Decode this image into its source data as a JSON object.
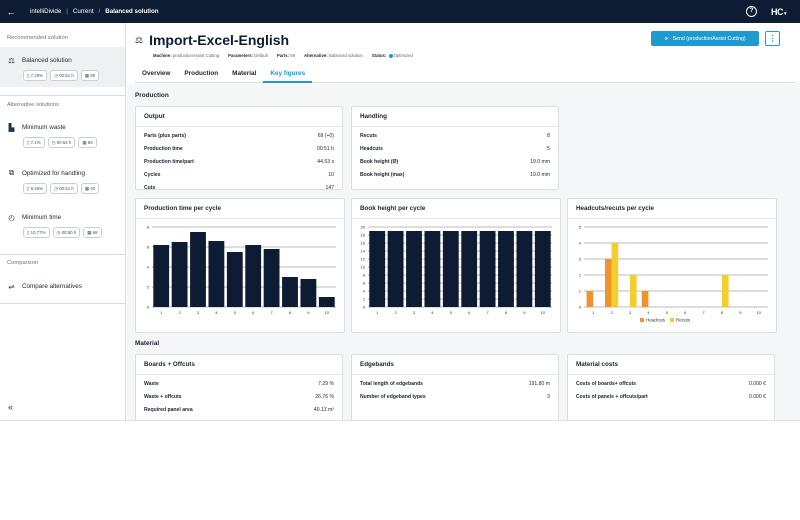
{
  "topbar": {
    "back_icon": "arrow-left-icon",
    "crumbs": [
      "intelliDivide",
      "Current",
      "Balanced solution"
    ],
    "help_icon": "question-circle-icon",
    "brand": "HC"
  },
  "sidebar": {
    "recommended_label": "Recommended solution",
    "alternatives_label": "Alternative solutions",
    "comparison_label": "Comparison",
    "items": [
      {
        "label": "Balanced solution",
        "icon": "scale-icon",
        "chips": [
          "7.29%",
          "00:51 h",
          "69"
        ]
      },
      {
        "label": "Minimum waste",
        "icon": "waste-icon",
        "chips": [
          "7.1%",
          "00:54 h",
          "69"
        ]
      },
      {
        "label": "Optimized for handling",
        "icon": "handling-icon",
        "chips": [
          "9.46%",
          "00:51 h",
          "40"
        ]
      },
      {
        "label": "Minimum time",
        "icon": "clock-icon",
        "chips": [
          "10.77%",
          "00:50 h",
          "68"
        ]
      }
    ],
    "compare_label": "Compare alternatives",
    "compare_icon": "compare-icon",
    "collapse_icon": "double-chevron-left-icon"
  },
  "header": {
    "title": "Import-Excel-English",
    "meta": [
      {
        "k": "Machine:",
        "v": "productionAssist Cutting"
      },
      {
        "k": "Parameters:",
        "v": "Default"
      },
      {
        "k": "Parts:",
        "v": "69"
      },
      {
        "k": "Alternative:",
        "v": "Balanced solution"
      },
      {
        "k": "Status:",
        "v": "Optimized"
      }
    ],
    "send_label": "Send (productionAssist Cutting)",
    "more_icon": "kebab-menu-icon"
  },
  "tabs": [
    "Overview",
    "Production",
    "Material",
    "Key figures"
  ],
  "production": {
    "section_title": "Production",
    "output": {
      "title": "Output",
      "rows": [
        {
          "k": "Parts (plus parts)",
          "v": "69 (+0)"
        },
        {
          "k": "Production time",
          "v": "00:51 h"
        },
        {
          "k": "Production time/part",
          "v": "44.53 s"
        },
        {
          "k": "Cycles",
          "v": "10"
        },
        {
          "k": "Cuts",
          "v": "147"
        }
      ]
    },
    "handling": {
      "title": "Handling",
      "rows": [
        {
          "k": "Recuts",
          "v": "8"
        },
        {
          "k": "Headcuts",
          "v": "5"
        },
        {
          "k": "Book height (Ø)",
          "v": "19.0 mm"
        },
        {
          "k": "Book height (max)",
          "v": "19.0 mm"
        }
      ]
    }
  },
  "charts_titles": {
    "time": "Production time per cycle",
    "book": "Book height per cycle",
    "cuts": "Headcuts/recuts per cycle"
  },
  "chart_data": [
    {
      "type": "bar",
      "title": "Production time per cycle",
      "categories": [
        "1",
        "2",
        "3",
        "4",
        "5",
        "6",
        "7",
        "8",
        "9",
        "10"
      ],
      "values": [
        6.2,
        6.5,
        7.5,
        6.6,
        5.5,
        6.2,
        5.8,
        3.0,
        2.8,
        1.0
      ],
      "ylim": [
        0,
        8
      ],
      "yticks": [
        0,
        2,
        4,
        6,
        8
      ],
      "color": "#0d1b33"
    },
    {
      "type": "bar",
      "title": "Book height per cycle",
      "categories": [
        "1",
        "2",
        "3",
        "4",
        "5",
        "6",
        "7",
        "8",
        "9",
        "10"
      ],
      "values": [
        19,
        19,
        19,
        19,
        19,
        19,
        19,
        19,
        19,
        19
      ],
      "ylim": [
        0,
        20
      ],
      "yticks": [
        0,
        2,
        4,
        6,
        8,
        10,
        12,
        14,
        16,
        18,
        20
      ],
      "color": "#0d1b33"
    },
    {
      "type": "bar",
      "title": "Headcuts/recuts per cycle",
      "categories": [
        "1",
        "2",
        "3",
        "4",
        "5",
        "6",
        "7",
        "8",
        "9",
        "10"
      ],
      "ylim": [
        0,
        5
      ],
      "yticks": [
        0,
        1,
        2,
        3,
        4,
        5
      ],
      "series": [
        {
          "name": "Headcuts",
          "values": [
            1,
            3,
            0,
            1,
            0,
            0,
            0,
            0,
            0,
            0
          ],
          "color": "#f0932b"
        },
        {
          "name": "Recuts",
          "values": [
            0,
            4,
            2,
            0,
            0,
            0,
            0,
            2,
            0,
            0
          ],
          "color": "#f5cd2e"
        }
      ],
      "legend": "bottom"
    }
  ],
  "material": {
    "section_title": "Material",
    "boards": {
      "title": "Boards + Offcuts",
      "rows": [
        {
          "k": "Waste",
          "v": "7.29 %"
        },
        {
          "k": "Waste + offcuts",
          "v": "26.76 %"
        },
        {
          "k": "Required panel area",
          "v": "40.13 m²"
        }
      ]
    },
    "edgebands": {
      "title": "Edgebands",
      "rows": [
        {
          "k": "Total length of edgebands",
          "v": "191.80 m"
        },
        {
          "k": "Number of edgeband types",
          "v": "3"
        }
      ]
    },
    "costs": {
      "title": "Material costs",
      "rows": [
        {
          "k": "Costs of boards+ offcuts",
          "v": "0.000 €"
        },
        {
          "k": "Costs of panels + offcuts/part",
          "v": "0.000 €"
        }
      ]
    }
  }
}
